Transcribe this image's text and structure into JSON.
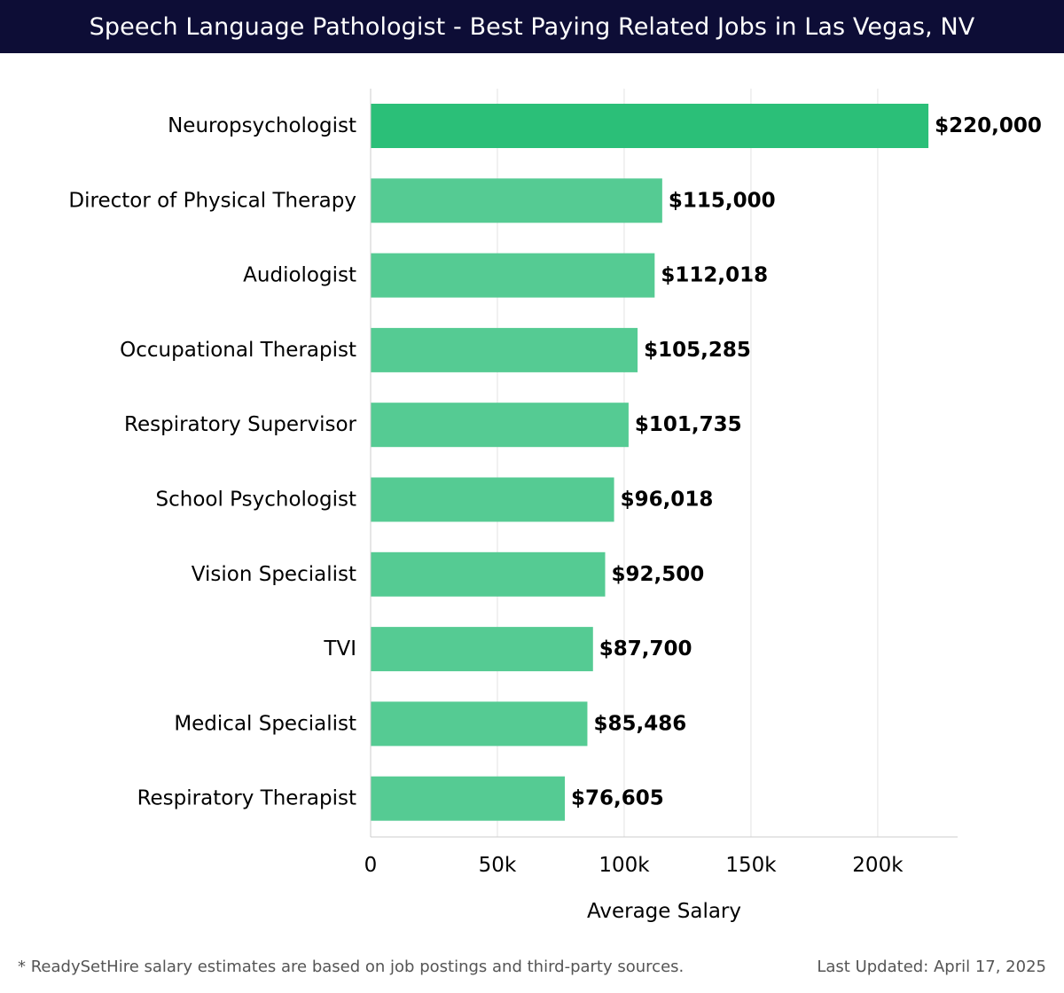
{
  "header": {
    "title": "Speech Language Pathologist - Best Paying Related Jobs in Las Vegas, NV"
  },
  "colors": {
    "header_bg": "#0d0d36",
    "bar_highlight": "#2bbf78",
    "bar": "#55cb93",
    "grid": "#e3e3e3",
    "axis": "#cccccc"
  },
  "chart_data": {
    "type": "bar",
    "orientation": "horizontal",
    "title": "Speech Language Pathologist - Best Paying Related Jobs in Las Vegas, NV",
    "xlabel": "Average Salary",
    "ylabel": "",
    "categories": [
      "Neuropsychologist",
      "Director of Physical Therapy",
      "Audiologist",
      "Occupational Therapist",
      "Respiratory Supervisor",
      "School Psychologist",
      "Vision Specialist",
      "TVI",
      "Medical Specialist",
      "Respiratory Therapist"
    ],
    "values": [
      220000,
      115000,
      112018,
      105285,
      101735,
      96018,
      92500,
      87700,
      85486,
      76605
    ],
    "value_labels": [
      "$220,000",
      "$115,000",
      "$112,018",
      "$105,285",
      "$101,735",
      "$96,018",
      "$92,500",
      "$87,700",
      "$85,486",
      "$76,605"
    ],
    "xlim": [
      0,
      231500
    ],
    "xticks": [
      0,
      50000,
      100000,
      150000,
      200000
    ],
    "xtick_labels": [
      "0",
      "50k",
      "100k",
      "150k",
      "200k"
    ],
    "grid": true,
    "legend": "none"
  },
  "footer": {
    "note": "* ReadySetHire salary estimates are based on job postings and third-party sources.",
    "updated": "Last Updated: April 17, 2025"
  }
}
